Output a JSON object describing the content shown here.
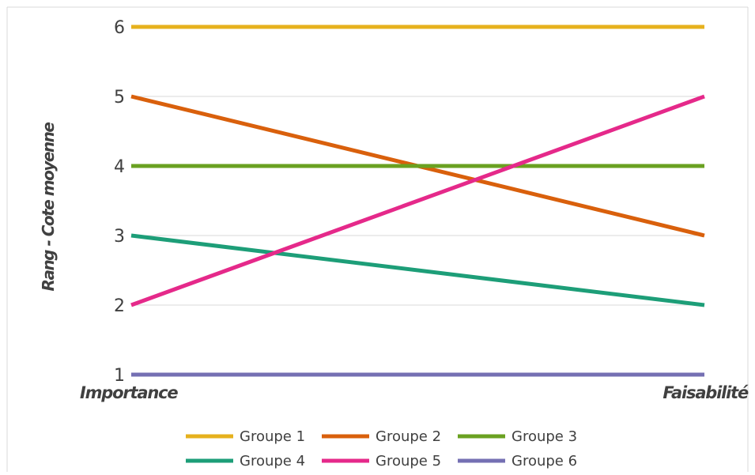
{
  "chart_data": {
    "type": "line",
    "categories": [
      "Importance",
      "Faisabilité"
    ],
    "ylabel": "Rang - Cote moyenne",
    "ylim": [
      1,
      6
    ],
    "yticks": [
      1,
      2,
      3,
      4,
      5,
      6
    ],
    "grid": true,
    "legend_position": "bottom",
    "series": [
      {
        "name": "Groupe 1",
        "values": [
          6,
          6
        ],
        "color": "#e6b11d"
      },
      {
        "name": "Groupe 2",
        "values": [
          5,
          3
        ],
        "color": "#d9600c"
      },
      {
        "name": "Groupe 3",
        "values": [
          4,
          4
        ],
        "color": "#6aa121"
      },
      {
        "name": "Groupe 4",
        "values": [
          3,
          2
        ],
        "color": "#1d9e78"
      },
      {
        "name": "Groupe 5",
        "values": [
          2,
          5
        ],
        "color": "#e5298a"
      },
      {
        "name": "Groupe 6",
        "values": [
          1,
          1
        ],
        "color": "#7570b3"
      }
    ]
  }
}
